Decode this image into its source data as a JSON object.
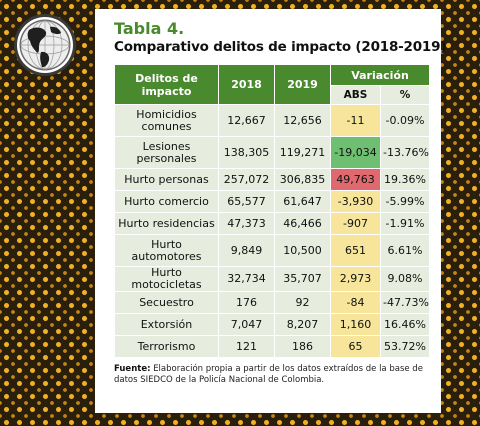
{
  "table_label": "Tabla 4.",
  "table_title": "Comparativo delitos de impacto (2018-2019)",
  "columns": {
    "category": "Delitos de impacto",
    "y2018": "2018",
    "y2019": "2019",
    "variation": "Variación",
    "abs": "ABS",
    "pct": "%"
  },
  "rows": [
    {
      "category": "Homicidios comunes",
      "y2018": "12,667",
      "y2019": "12,656",
      "abs": "-11",
      "pct": "-0.09%"
    },
    {
      "category": "Lesiones personales",
      "y2018": "138,305",
      "y2019": "119,271",
      "abs": "-19,034",
      "pct": "-13.76%"
    },
    {
      "category": "Hurto personas",
      "y2018": "257,072",
      "y2019": "306,835",
      "abs": "49,763",
      "pct": "19.36%"
    },
    {
      "category": "Hurto comercio",
      "y2018": "65,577",
      "y2019": "61,647",
      "abs": "-3,930",
      "pct": "-5.99%"
    },
    {
      "category": "Hurto residencias",
      "y2018": "47,373",
      "y2019": "46,466",
      "abs": "-907",
      "pct": "-1.91%"
    },
    {
      "category": "Hurto automotores",
      "y2018": "9,849",
      "y2019": "10,500",
      "abs": "651",
      "pct": "6.61%"
    },
    {
      "category": "Hurto motocicletas",
      "y2018": "32,734",
      "y2019": "35,707",
      "abs": "2,973",
      "pct": "9.08%"
    },
    {
      "category": "Secuestro",
      "y2018": "176",
      "y2019": "92",
      "abs": "-84",
      "pct": "-47.73%"
    },
    {
      "category": "Extorsión",
      "y2018": "7,047",
      "y2019": "8,207",
      "abs": "1,160",
      "pct": "16.46%"
    },
    {
      "category": "Terrorismo",
      "y2018": "121",
      "y2019": "186",
      "abs": "65",
      "pct": "53.72%"
    }
  ],
  "source_label": "Fuente:",
  "source_text": "Elaboración propia a partir de los datos extraídos de la base de datos SIEDCO de la Policía Nacional de Colombia.",
  "colors": {
    "header_green": "#4a8a2e",
    "cell_bg": "#e6eddf",
    "abs_yellow": "#f6e59b",
    "abs_green": "#6fbf72",
    "abs_red": "#e0696e"
  },
  "icons": {
    "emblem": "globe-icon"
  }
}
